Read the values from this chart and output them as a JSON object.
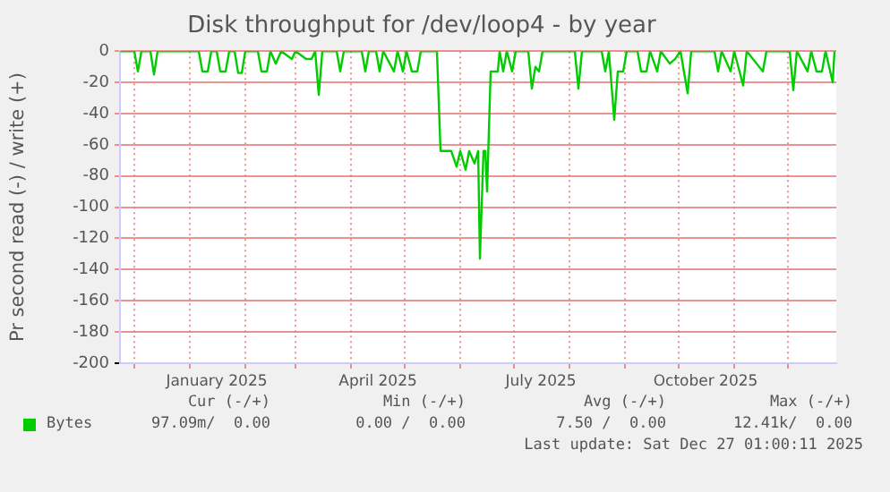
{
  "chart_data": {
    "type": "line",
    "title": "Disk throughput for /dev/loop4 - by year",
    "ylabel": "Pr second read (-) / write (+)",
    "xlim": [
      "2024-11-23",
      "2025-12-28"
    ],
    "xticks": [
      {
        "value": "2024-12-01",
        "label": null
      },
      {
        "value": "2025-01-01",
        "label": null
      },
      {
        "value": "2025-01-16",
        "label": "January 2025"
      },
      {
        "value": "2025-02-01",
        "label": null
      },
      {
        "value": "2025-03-01",
        "label": null
      },
      {
        "value": "2025-04-01",
        "label": null
      },
      {
        "value": "2025-04-16",
        "label": "April 2025"
      },
      {
        "value": "2025-05-01",
        "label": null
      },
      {
        "value": "2025-06-01",
        "label": null
      },
      {
        "value": "2025-07-01",
        "label": null
      },
      {
        "value": "2025-07-16",
        "label": "July 2025"
      },
      {
        "value": "2025-08-01",
        "label": null
      },
      {
        "value": "2025-09-01",
        "label": null
      },
      {
        "value": "2025-10-01",
        "label": null
      },
      {
        "value": "2025-10-16",
        "label": "October 2025"
      },
      {
        "value": "2025-11-01",
        "label": null
      },
      {
        "value": "2025-12-01",
        "label": null
      }
    ],
    "ylim": [
      -200,
      0
    ],
    "yticks": [
      0,
      -20,
      -40,
      -60,
      -80,
      -100,
      -120,
      -140,
      -160,
      -180,
      -200
    ],
    "grid": true,
    "legend": "bottom left",
    "marker": "none",
    "line_style": "solid",
    "x": [
      "2024-11-23",
      "2024-12-01",
      "2024-12-03",
      "2024-12-05",
      "2024-12-10",
      "2024-12-12",
      "2024-12-14",
      "2025-01-06",
      "2025-01-08",
      "2025-01-11",
      "2025-01-13",
      "2025-01-16",
      "2025-01-18",
      "2025-01-21",
      "2025-01-23",
      "2025-01-26",
      "2025-01-28",
      "2025-01-30",
      "2025-02-01",
      "2025-02-08",
      "2025-02-10",
      "2025-02-13",
      "2025-02-15",
      "2025-02-18",
      "2025-02-21",
      "2025-02-27",
      "2025-03-01",
      "2025-03-07",
      "2025-03-10",
      "2025-03-12",
      "2025-03-14",
      "2025-03-16",
      "2025-03-24",
      "2025-03-26",
      "2025-03-28",
      "2025-04-07",
      "2025-04-09",
      "2025-04-11",
      "2025-04-15",
      "2025-04-17",
      "2025-04-19",
      "2025-04-25",
      "2025-04-27",
      "2025-04-30",
      "2025-05-02",
      "2025-05-05",
      "2025-05-08",
      "2025-05-10",
      "2025-05-19",
      "2025-05-21",
      "2025-05-27",
      "2025-05-30",
      "2025-06-01",
      "2025-06-04",
      "2025-06-06",
      "2025-06-09",
      "2025-06-11",
      "2025-06-12",
      "2025-06-14",
      "2025-06-15",
      "2025-06-16",
      "2025-06-18",
      "2025-06-22",
      "2025-06-23",
      "2025-06-25",
      "2025-06-27",
      "2025-06-30",
      "2025-07-02",
      "2025-07-09",
      "2025-07-11",
      "2025-07-13",
      "2025-07-15",
      "2025-07-17",
      "2025-08-04",
      "2025-08-06",
      "2025-08-08",
      "2025-08-19",
      "2025-08-21",
      "2025-08-23",
      "2025-08-26",
      "2025-08-28",
      "2025-08-31",
      "2025-09-02",
      "2025-09-08",
      "2025-09-10",
      "2025-09-13",
      "2025-09-15",
      "2025-09-19",
      "2025-09-21",
      "2025-09-26",
      "2025-09-29",
      "2025-10-02",
      "2025-10-06",
      "2025-10-08",
      "2025-10-21",
      "2025-10-23",
      "2025-10-25",
      "2025-10-30",
      "2025-11-01",
      "2025-11-06",
      "2025-11-08",
      "2025-11-17",
      "2025-11-19",
      "2025-12-02",
      "2025-12-04",
      "2025-12-06",
      "2025-12-12",
      "2025-12-14",
      "2025-12-17",
      "2025-12-20",
      "2025-12-22",
      "2025-12-26",
      "2025-12-27"
    ],
    "series": [
      {
        "name": "Bytes",
        "color": "#00cc00",
        "values": [
          0,
          0,
          -13,
          0,
          0,
          -15,
          0,
          0,
          -13,
          -13,
          0,
          0,
          -13,
          -13,
          0,
          0,
          -14,
          -14,
          0,
          0,
          -13,
          -13,
          0,
          -8,
          0,
          -5,
          0,
          -5,
          -5,
          0,
          -28,
          0,
          0,
          -13,
          0,
          0,
          -13,
          0,
          0,
          -13,
          0,
          -13,
          0,
          -13,
          0,
          -13,
          -13,
          0,
          0,
          -64,
          -64,
          -74,
          -64,
          -76,
          -64,
          -72,
          -64,
          -133,
          -64,
          -64,
          -90,
          -13,
          -13,
          0,
          -13,
          0,
          -13,
          0,
          0,
          -24,
          -10,
          -13,
          0,
          0,
          -24,
          0,
          0,
          -13,
          0,
          -44,
          -13,
          -13,
          0,
          0,
          -13,
          -13,
          0,
          -13,
          0,
          -8,
          -5,
          0,
          -27,
          0,
          0,
          -13,
          0,
          -13,
          0,
          -22,
          0,
          -13,
          0,
          0,
          -25,
          0,
          -13,
          0,
          -13,
          -13,
          0,
          -20,
          0
        ]
      }
    ],
    "annotations": [
      "Cur (-/+)",
      "Min (-/+)",
      "Avg (-/+)",
      "Max (-/+)",
      "97.09m/  0.00",
      "0.00 /  0.00",
      "7.50 /  0.00",
      "12.41k/  0.00",
      "Last update: Sat Dec 27 01:00:11 2025"
    ]
  }
}
